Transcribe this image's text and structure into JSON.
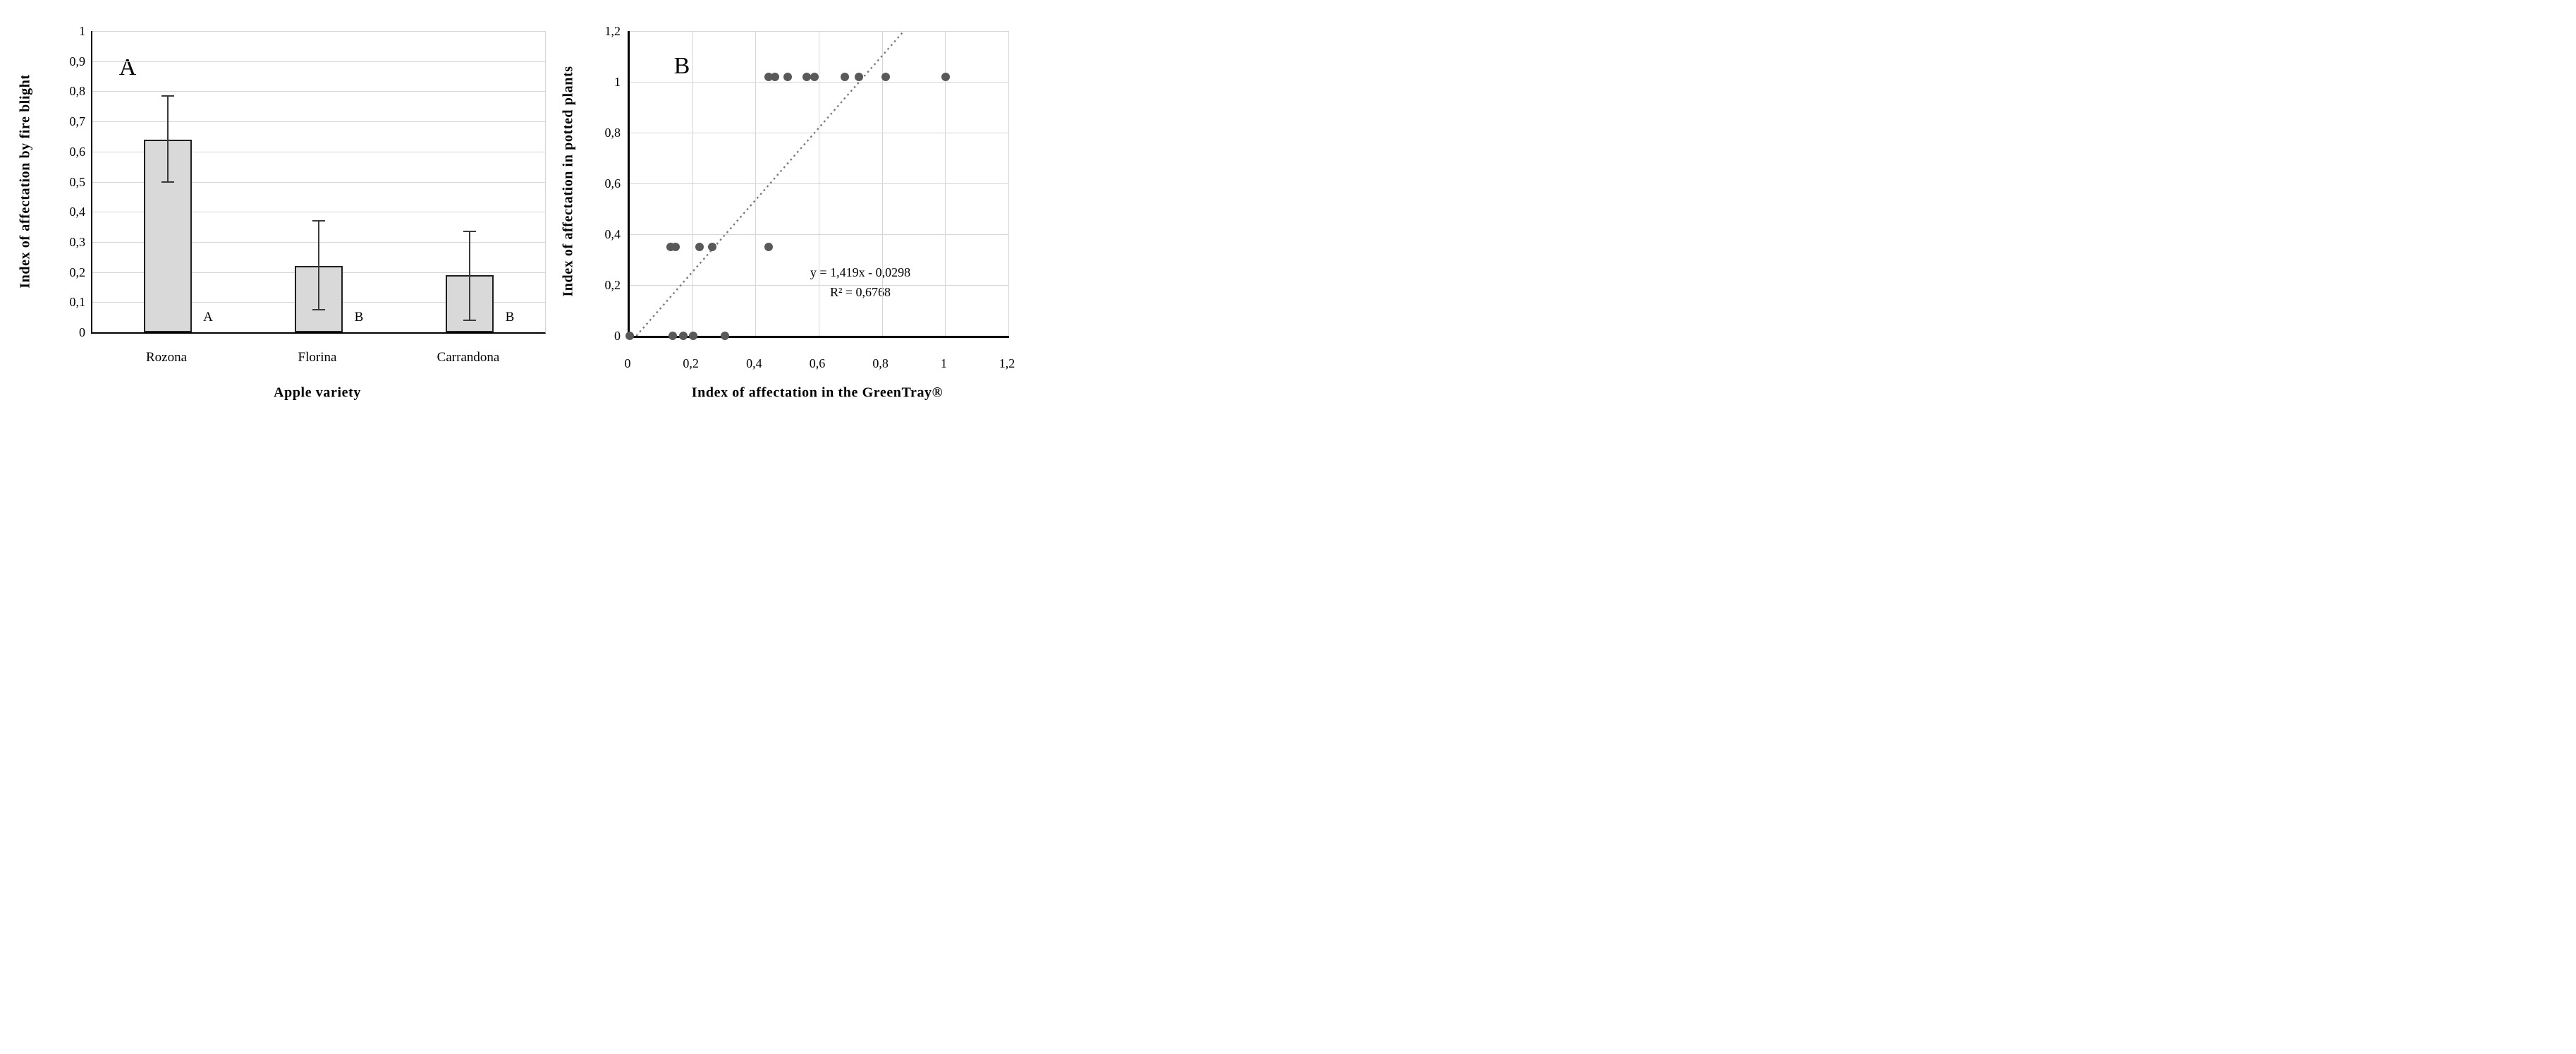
{
  "figure_title": "",
  "panels": {
    "a_label": "A",
    "b_label": "B"
  },
  "colors": {
    "bar_fill": "#d9d9d9",
    "bar_border": "#1f1f1f",
    "point_color": "#595959",
    "trendline_color": "#7a7a7a",
    "gridline_color": "#d6d6d6",
    "axis_color": "#000000"
  },
  "chart_data": [
    {
      "type": "bar",
      "panel_label": "A",
      "title": "",
      "xlabel": "Apple variety",
      "ylabel": "Index of affectation by fire blight",
      "categories": [
        "Rozona",
        "Florina",
        "Carrandona"
      ],
      "values": [
        0.64,
        0.22,
        0.19
      ],
      "error_low": [
        0.5,
        0.075,
        0.04
      ],
      "error_high": [
        0.785,
        0.37,
        0.335
      ],
      "sig_letters": [
        "A",
        "B",
        "B"
      ],
      "sig_letter_y": 0.05,
      "ylim": [
        0,
        1
      ],
      "ytick_values": [
        0,
        0.1,
        0.2,
        0.3,
        0.4,
        0.5,
        0.6,
        0.7,
        0.8,
        0.9,
        1
      ],
      "ytick_labels": [
        "0",
        "0,1",
        "0,2",
        "0,3",
        "0,4",
        "0,5",
        "0,6",
        "0,7",
        "0,8",
        "0,9",
        "1"
      ],
      "grid": "horizontal",
      "legend": "none"
    },
    {
      "type": "scatter",
      "panel_label": "B",
      "title": "",
      "xlabel": "Index of affectation in the GreenTray®",
      "ylabel": "Index of affectation in potted plants",
      "xlim": [
        0,
        1.2
      ],
      "ylim": [
        0,
        1.2
      ],
      "xtick_values": [
        0,
        0.2,
        0.4,
        0.6,
        0.8,
        1,
        1.2
      ],
      "xtick_labels": [
        "0",
        "0,2",
        "0,4",
        "0,6",
        "0,8",
        "1",
        "1,2"
      ],
      "ytick_values": [
        0,
        0.2,
        0.4,
        0.6,
        0.8,
        1,
        1.2
      ],
      "ytick_labels": [
        "0",
        "0,2",
        "0,4",
        "0,6",
        "0,8",
        "1",
        "1,2"
      ],
      "points": [
        [
          0,
          0
        ],
        [
          0.135,
          0
        ],
        [
          0.17,
          0
        ],
        [
          0.2,
          0
        ],
        [
          0.3,
          0
        ],
        [
          0.13,
          0.35
        ],
        [
          0.145,
          0.35
        ],
        [
          0.22,
          0.35
        ],
        [
          0.26,
          0.35
        ],
        [
          0.44,
          0.35
        ],
        [
          0.44,
          1.02
        ],
        [
          0.46,
          1.02
        ],
        [
          0.5,
          1.02
        ],
        [
          0.56,
          1.02
        ],
        [
          0.585,
          1.02
        ],
        [
          0.68,
          1.02
        ],
        [
          0.725,
          1.02
        ],
        [
          0.81,
          1.02
        ],
        [
          1.0,
          1.02
        ]
      ],
      "trendline": {
        "equation_label": "y = 1,419x - 0,0298",
        "r_squared_label": "R² = 0,6768",
        "slope": 1.419,
        "intercept": -0.0298,
        "x_start": 0.021,
        "y_start": 0,
        "x_end": 0.867,
        "y_end": 1.2,
        "style": "dotted"
      },
      "grid": "both",
      "legend": "none"
    }
  ]
}
